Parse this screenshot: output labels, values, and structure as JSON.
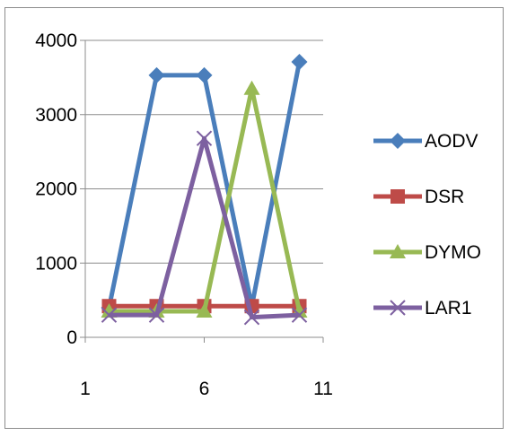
{
  "chart_data": {
    "type": "line",
    "title": "",
    "xlabel": "",
    "ylabel": "",
    "ylim": [
      0,
      4000
    ],
    "y_ticks": [
      0,
      1000,
      2000,
      3000,
      4000
    ],
    "y_tick_labels": [
      "0",
      "1000",
      "2000",
      "3000",
      "4000"
    ],
    "xlim": [
      1,
      11
    ],
    "x_ticks": [
      1,
      6,
      11
    ],
    "x_tick_labels": [
      "1",
      "6",
      "11"
    ],
    "x": [
      2,
      4,
      6,
      8,
      10
    ],
    "grid": "horizontal",
    "legend_position": "right",
    "series": [
      {
        "name": "AODV",
        "color": "#4a7ebb",
        "marker": "diamond",
        "values": [
          400,
          3530,
          3530,
          420,
          3710
        ]
      },
      {
        "name": "DSR",
        "color": "#be4b48",
        "marker": "square",
        "values": [
          420,
          420,
          420,
          420,
          420
        ]
      },
      {
        "name": "DYMO",
        "color": "#98b954",
        "marker": "triangle",
        "values": [
          350,
          350,
          350,
          3350,
          350
        ]
      },
      {
        "name": "LAR1",
        "color": "#7d60a0",
        "marker": "x",
        "values": [
          300,
          300,
          2680,
          270,
          300
        ]
      }
    ]
  }
}
